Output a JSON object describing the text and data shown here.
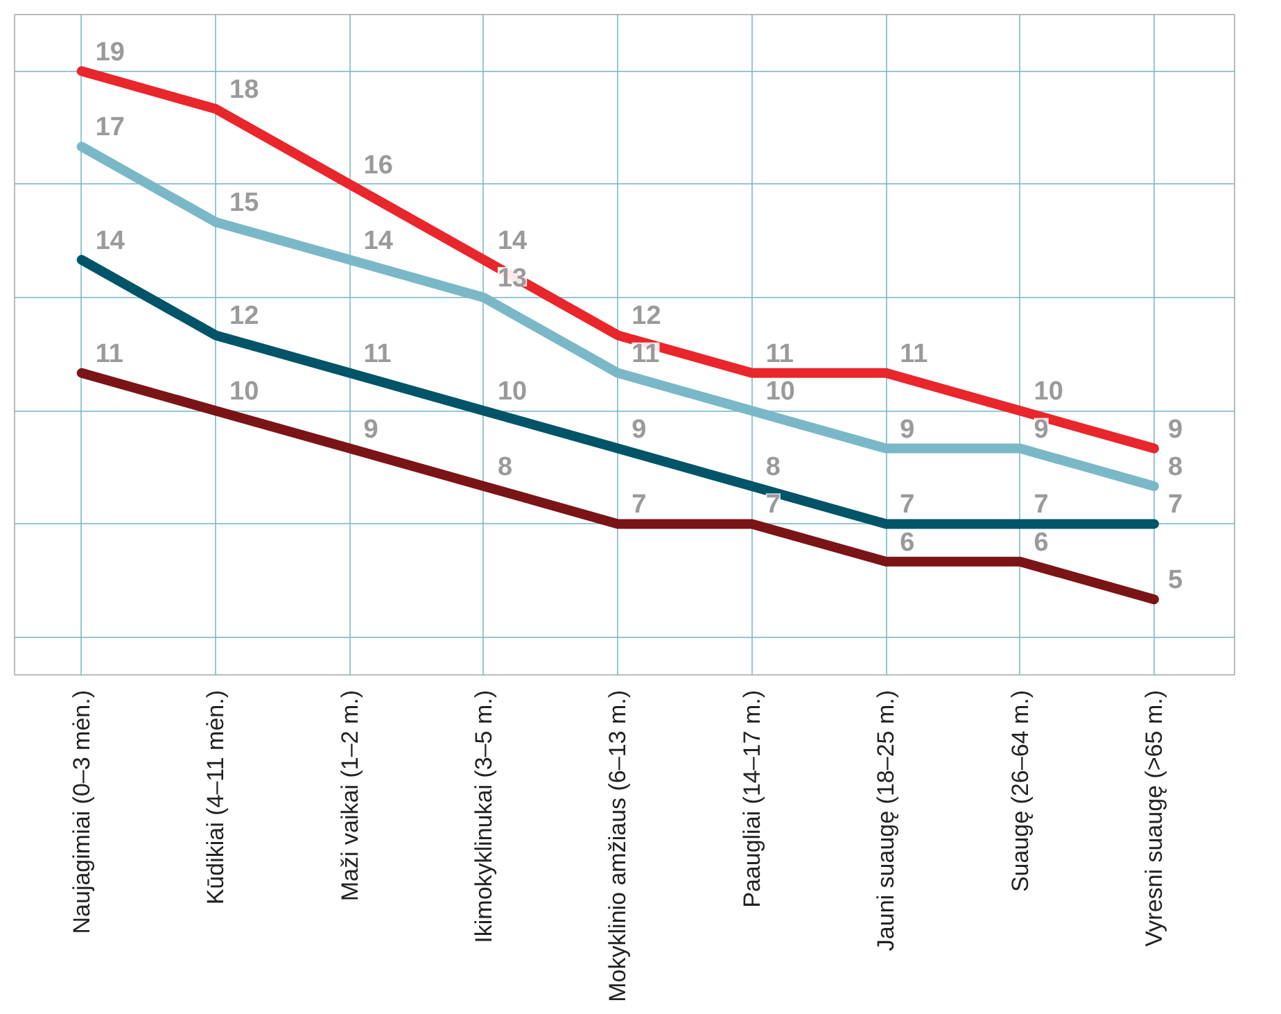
{
  "chart_data": {
    "type": "line",
    "categories": [
      "Naujagimiai (0–3 mėn.)",
      "Kūdikiai (4–11 mėn.)",
      "Maži vaikai (1–2 m.)",
      "Ikimokyklinukai (3–5 m.)",
      "Mokyklinio amžiaus (6–13 m.)",
      "Paaugliai (14–17 m.)",
      "Jauni suaugę (18–25 m.)",
      "Suaugę (26–64 m.)",
      "Vyresni suaugę (>65 m.)"
    ],
    "series": [
      {
        "color": "#e8262b",
        "values": [
          19,
          18,
          16,
          14,
          12,
          11,
          11,
          10,
          9
        ]
      },
      {
        "color": "#7ab8c8",
        "values": [
          17,
          15,
          14,
          13,
          11,
          10,
          9,
          9,
          8
        ]
      },
      {
        "color": "#005468",
        "values": [
          14,
          12,
          11,
          10,
          9,
          8,
          7,
          7,
          7
        ]
      },
      {
        "color": "#7b1416",
        "values": [
          11,
          10,
          9,
          8,
          7,
          7,
          6,
          6,
          5
        ]
      }
    ],
    "ylim": [
      3,
      20.5
    ],
    "yticks": [
      {
        "value": 4,
        "label": null
      },
      {
        "value": 7,
        "label": null
      },
      {
        "value": 10,
        "label": null
      },
      {
        "value": 13,
        "label": null
      },
      {
        "value": 16,
        "label": null
      },
      {
        "value": 19,
        "label": null
      }
    ],
    "grid": true,
    "tick_labels": "x",
    "data_labels": true,
    "marker": "none",
    "line_style": "solid"
  }
}
